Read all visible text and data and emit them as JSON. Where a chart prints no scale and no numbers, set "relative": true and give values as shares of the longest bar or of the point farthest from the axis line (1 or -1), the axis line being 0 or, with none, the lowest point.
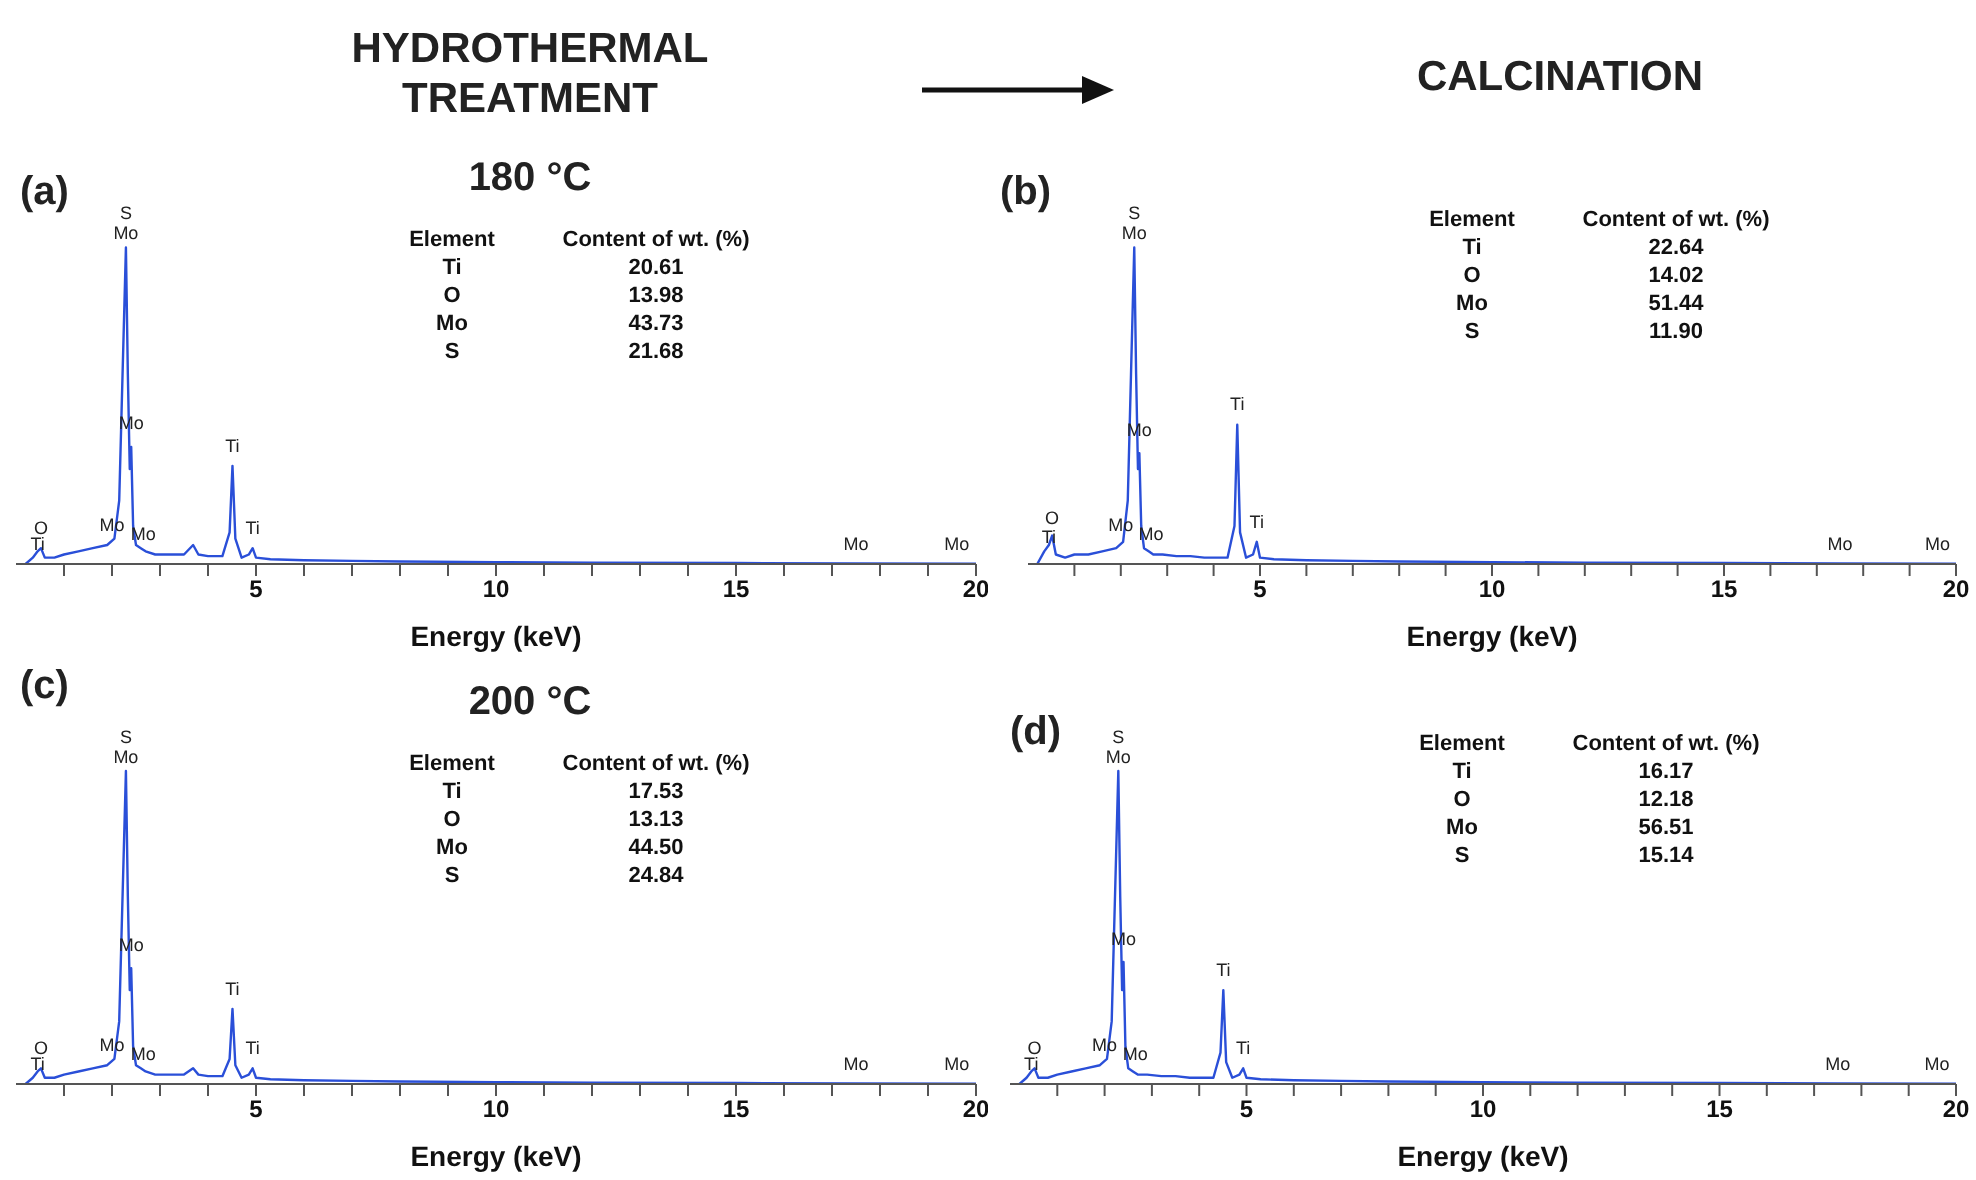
{
  "chart_data": [
    {
      "type": "line",
      "title": "HYDROTHERMAL TREATMENT",
      "subtitle": "180 °C",
      "xlabel": "Energy (keV)",
      "relative": true,
      "color": "#2a4fd8",
      "marker": "none",
      "xlim": [
        0,
        20
      ],
      "xticks": [
        {
          "value": 1,
          "label": null
        },
        {
          "value": 2,
          "label": null
        },
        {
          "value": 3,
          "label": null
        },
        {
          "value": 4,
          "label": null
        },
        5,
        {
          "value": 6,
          "label": null
        },
        {
          "value": 7,
          "label": null
        },
        {
          "value": 8,
          "label": null
        },
        {
          "value": 9,
          "label": null
        },
        10,
        {
          "value": 11,
          "label": null
        },
        {
          "value": 12,
          "label": null
        },
        {
          "value": 13,
          "label": null
        },
        {
          "value": 14,
          "label": null
        },
        15,
        {
          "value": 16,
          "label": null
        },
        {
          "value": 17,
          "label": null
        },
        {
          "value": 18,
          "label": null
        },
        {
          "value": 19,
          "label": null
        },
        20
      ],
      "x": [
        0.2,
        0.35,
        0.45,
        0.52,
        0.6,
        0.8,
        1.0,
        1.3,
        1.6,
        1.9,
        2.05,
        2.15,
        2.22,
        2.29,
        2.33,
        2.37,
        2.4,
        2.44,
        2.5,
        2.6,
        2.7,
        2.9,
        3.2,
        3.5,
        3.69,
        3.8,
        4.0,
        4.3,
        4.45,
        4.51,
        4.57,
        4.7,
        4.85,
        4.93,
        5.0,
        5.3,
        6,
        7,
        8,
        10,
        12,
        15,
        17.5,
        20
      ],
      "values": [
        0,
        0.02,
        0.04,
        0.05,
        0.02,
        0.02,
        0.03,
        0.04,
        0.05,
        0.06,
        0.08,
        0.2,
        0.6,
        1.0,
        0.6,
        0.3,
        0.37,
        0.12,
        0.06,
        0.05,
        0.04,
        0.03,
        0.03,
        0.03,
        0.06,
        0.03,
        0.025,
        0.025,
        0.1,
        0.31,
        0.08,
        0.02,
        0.03,
        0.05,
        0.02,
        0.015,
        0.012,
        0.01,
        0.008,
        0.006,
        0.004,
        0.003,
        0.002,
        0.001
      ],
      "annotations": [
        "(a)",
        "Element",
        "Content of wt. (%)",
        "Ti",
        "20.61",
        "O",
        "13.98",
        "Mo",
        "43.73",
        "S",
        "21.68",
        {
          "text": "S",
          "x": 2.29,
          "y": 1.0
        },
        {
          "text": "Mo",
          "x": 2.29,
          "y": 1.0
        },
        {
          "text": "Mo",
          "x": 2.4,
          "y": 0.4
        },
        {
          "text": "Ti",
          "x": 4.51,
          "y": 0.33
        },
        {
          "text": "Ti",
          "x": 4.93,
          "y": 0.07
        },
        {
          "text": "O",
          "x": 0.52,
          "y": 0.07
        },
        {
          "text": "Ti",
          "x": 0.45,
          "y": 0.02
        },
        {
          "text": "Mo",
          "x": 2.0,
          "y": 0.08
        },
        {
          "text": "Mo",
          "x": 2.65,
          "y": 0.05
        },
        {
          "text": "Mo",
          "x": 17.5,
          "y": 0.02
        },
        {
          "text": "Mo",
          "x": 19.6,
          "y": 0.02
        }
      ]
    },
    {
      "type": "line",
      "title": "CALCINATION",
      "xlabel": "Energy (keV)",
      "relative": true,
      "color": "#2a4fd8",
      "marker": "none",
      "xlim": [
        0,
        20
      ],
      "xticks": [
        {
          "value": 1,
          "label": null
        },
        {
          "value": 2,
          "label": null
        },
        {
          "value": 3,
          "label": null
        },
        {
          "value": 4,
          "label": null
        },
        5,
        {
          "value": 6,
          "label": null
        },
        {
          "value": 7,
          "label": null
        },
        {
          "value": 8,
          "label": null
        },
        {
          "value": 9,
          "label": null
        },
        10,
        {
          "value": 11,
          "label": null
        },
        {
          "value": 12,
          "label": null
        },
        {
          "value": 13,
          "label": null
        },
        {
          "value": 14,
          "label": null
        },
        15,
        {
          "value": 16,
          "label": null
        },
        {
          "value": 17,
          "label": null
        },
        {
          "value": 18,
          "label": null
        },
        {
          "value": 19,
          "label": null
        },
        20
      ],
      "x": [
        0.2,
        0.35,
        0.45,
        0.52,
        0.6,
        0.8,
        1.0,
        1.3,
        1.6,
        1.9,
        2.05,
        2.15,
        2.22,
        2.29,
        2.33,
        2.37,
        2.4,
        2.44,
        2.5,
        2.6,
        2.7,
        2.9,
        3.2,
        3.5,
        3.8,
        4.0,
        4.3,
        4.45,
        4.51,
        4.57,
        4.7,
        4.85,
        4.93,
        5.0,
        5.3,
        6,
        7,
        8,
        10,
        12,
        15,
        17.5,
        20
      ],
      "values": [
        0,
        0.04,
        0.06,
        0.09,
        0.03,
        0.02,
        0.03,
        0.03,
        0.04,
        0.05,
        0.07,
        0.2,
        0.6,
        1.0,
        0.6,
        0.3,
        0.35,
        0.12,
        0.05,
        0.04,
        0.03,
        0.03,
        0.025,
        0.025,
        0.02,
        0.02,
        0.02,
        0.12,
        0.44,
        0.1,
        0.02,
        0.03,
        0.07,
        0.02,
        0.015,
        0.012,
        0.01,
        0.008,
        0.006,
        0.004,
        0.003,
        0.002,
        0.001
      ],
      "annotations": [
        "(b)",
        "Element",
        "Content of wt. (%)",
        "Ti",
        "22.64",
        "O",
        "14.02",
        "Mo",
        "51.44",
        "S",
        "11.90",
        {
          "text": "S",
          "x": 2.29,
          "y": 1.0
        },
        {
          "text": "Mo",
          "x": 2.29,
          "y": 1.0
        },
        {
          "text": "Mo",
          "x": 2.4,
          "y": 0.38
        },
        {
          "text": "Ti",
          "x": 4.51,
          "y": 0.46
        },
        {
          "text": "Ti",
          "x": 4.93,
          "y": 0.09
        },
        {
          "text": "O",
          "x": 0.52,
          "y": 0.1
        },
        {
          "text": "Ti",
          "x": 0.45,
          "y": 0.04
        },
        {
          "text": "Mo",
          "x": 2.0,
          "y": 0.08
        },
        {
          "text": "Mo",
          "x": 2.65,
          "y": 0.05
        },
        {
          "text": "Mo",
          "x": 17.5,
          "y": 0.02
        },
        {
          "text": "Mo",
          "x": 19.6,
          "y": 0.02
        }
      ]
    },
    {
      "type": "line",
      "title": "200 °C",
      "xlabel": "Energy (keV)",
      "relative": true,
      "color": "#2a4fd8",
      "marker": "none",
      "xlim": [
        0,
        20
      ],
      "xticks": [
        {
          "value": 1,
          "label": null
        },
        {
          "value": 2,
          "label": null
        },
        {
          "value": 3,
          "label": null
        },
        {
          "value": 4,
          "label": null
        },
        5,
        {
          "value": 6,
          "label": null
        },
        {
          "value": 7,
          "label": null
        },
        {
          "value": 8,
          "label": null
        },
        {
          "value": 9,
          "label": null
        },
        10,
        {
          "value": 11,
          "label": null
        },
        {
          "value": 12,
          "label": null
        },
        {
          "value": 13,
          "label": null
        },
        {
          "value": 14,
          "label": null
        },
        15,
        {
          "value": 16,
          "label": null
        },
        {
          "value": 17,
          "label": null
        },
        {
          "value": 18,
          "label": null
        },
        {
          "value": 19,
          "label": null
        },
        20
      ],
      "x": [
        0.2,
        0.35,
        0.45,
        0.52,
        0.6,
        0.8,
        1.0,
        1.3,
        1.6,
        1.9,
        2.05,
        2.15,
        2.22,
        2.29,
        2.33,
        2.37,
        2.4,
        2.44,
        2.5,
        2.6,
        2.7,
        2.9,
        3.2,
        3.5,
        3.69,
        3.8,
        4.0,
        4.3,
        4.45,
        4.51,
        4.57,
        4.7,
        4.85,
        4.93,
        5.0,
        5.3,
        6,
        7,
        8,
        10,
        12,
        15,
        17.5,
        20
      ],
      "values": [
        0,
        0.02,
        0.04,
        0.05,
        0.02,
        0.02,
        0.03,
        0.04,
        0.05,
        0.06,
        0.08,
        0.2,
        0.6,
        1.0,
        0.6,
        0.3,
        0.37,
        0.12,
        0.06,
        0.05,
        0.04,
        0.03,
        0.03,
        0.03,
        0.05,
        0.03,
        0.025,
        0.025,
        0.08,
        0.24,
        0.06,
        0.02,
        0.03,
        0.05,
        0.02,
        0.015,
        0.012,
        0.01,
        0.008,
        0.006,
        0.004,
        0.003,
        0.002,
        0.001
      ],
      "annotations": [
        "(c)",
        "Element",
        "Content of wt. (%)",
        "Ti",
        "17.53",
        "O",
        "13.13",
        "Mo",
        "44.50",
        "S",
        "24.84",
        {
          "text": "S",
          "x": 2.29,
          "y": 1.0
        },
        {
          "text": "Mo",
          "x": 2.29,
          "y": 1.0
        },
        {
          "text": "Mo",
          "x": 2.4,
          "y": 0.4
        },
        {
          "text": "Ti",
          "x": 4.51,
          "y": 0.26
        },
        {
          "text": "Ti",
          "x": 4.93,
          "y": 0.07
        },
        {
          "text": "O",
          "x": 0.52,
          "y": 0.07
        },
        {
          "text": "Ti",
          "x": 0.45,
          "y": 0.02
        },
        {
          "text": "Mo",
          "x": 2.0,
          "y": 0.08
        },
        {
          "text": "Mo",
          "x": 2.65,
          "y": 0.05
        },
        {
          "text": "Mo",
          "x": 17.5,
          "y": 0.02
        },
        {
          "text": "Mo",
          "x": 19.6,
          "y": 0.02
        }
      ]
    },
    {
      "type": "line",
      "xlabel": "Energy (keV)",
      "relative": true,
      "color": "#2a4fd8",
      "marker": "none",
      "xlim": [
        0,
        20
      ],
      "xticks": [
        {
          "value": 1,
          "label": null
        },
        {
          "value": 2,
          "label": null
        },
        {
          "value": 3,
          "label": null
        },
        {
          "value": 4,
          "label": null
        },
        5,
        {
          "value": 6,
          "label": null
        },
        {
          "value": 7,
          "label": null
        },
        {
          "value": 8,
          "label": null
        },
        {
          "value": 9,
          "label": null
        },
        10,
        {
          "value": 11,
          "label": null
        },
        {
          "value": 12,
          "label": null
        },
        {
          "value": 13,
          "label": null
        },
        {
          "value": 14,
          "label": null
        },
        15,
        {
          "value": 16,
          "label": null
        },
        {
          "value": 17,
          "label": null
        },
        {
          "value": 18,
          "label": null
        },
        {
          "value": 19,
          "label": null
        },
        20
      ],
      "x": [
        0.2,
        0.35,
        0.45,
        0.52,
        0.6,
        0.8,
        1.0,
        1.3,
        1.6,
        1.9,
        2.05,
        2.15,
        2.22,
        2.29,
        2.33,
        2.37,
        2.4,
        2.44,
        2.5,
        2.6,
        2.7,
        2.9,
        3.2,
        3.5,
        3.8,
        4.0,
        4.3,
        4.45,
        4.51,
        4.57,
        4.7,
        4.85,
        4.93,
        5.0,
        5.3,
        6,
        7,
        8,
        10,
        12,
        15,
        17.5,
        20
      ],
      "values": [
        0,
        0.02,
        0.04,
        0.05,
        0.02,
        0.02,
        0.03,
        0.04,
        0.05,
        0.06,
        0.08,
        0.2,
        0.6,
        1.0,
        0.6,
        0.3,
        0.39,
        0.12,
        0.05,
        0.04,
        0.03,
        0.03,
        0.025,
        0.025,
        0.02,
        0.02,
        0.02,
        0.1,
        0.3,
        0.07,
        0.02,
        0.03,
        0.05,
        0.02,
        0.015,
        0.012,
        0.01,
        0.008,
        0.006,
        0.004,
        0.003,
        0.002,
        0.001
      ],
      "annotations": [
        "(d)",
        "Element",
        "Content of wt. (%)",
        "Ti",
        "16.17",
        "O",
        "12.18",
        "Mo",
        "56.51",
        "S",
        "15.14",
        {
          "text": "S",
          "x": 2.29,
          "y": 1.0
        },
        {
          "text": "Mo",
          "x": 2.29,
          "y": 1.0
        },
        {
          "text": "Mo",
          "x": 2.4,
          "y": 0.42
        },
        {
          "text": "Ti",
          "x": 4.51,
          "y": 0.32
        },
        {
          "text": "Ti",
          "x": 4.93,
          "y": 0.07
        },
        {
          "text": "O",
          "x": 0.52,
          "y": 0.07
        },
        {
          "text": "Ti",
          "x": 0.45,
          "y": 0.02
        },
        {
          "text": "Mo",
          "x": 2.0,
          "y": 0.08
        },
        {
          "text": "Mo",
          "x": 2.65,
          "y": 0.05
        },
        {
          "text": "Mo",
          "x": 17.5,
          "y": 0.02
        },
        {
          "text": "Mo",
          "x": 19.6,
          "y": 0.02
        }
      ]
    }
  ]
}
